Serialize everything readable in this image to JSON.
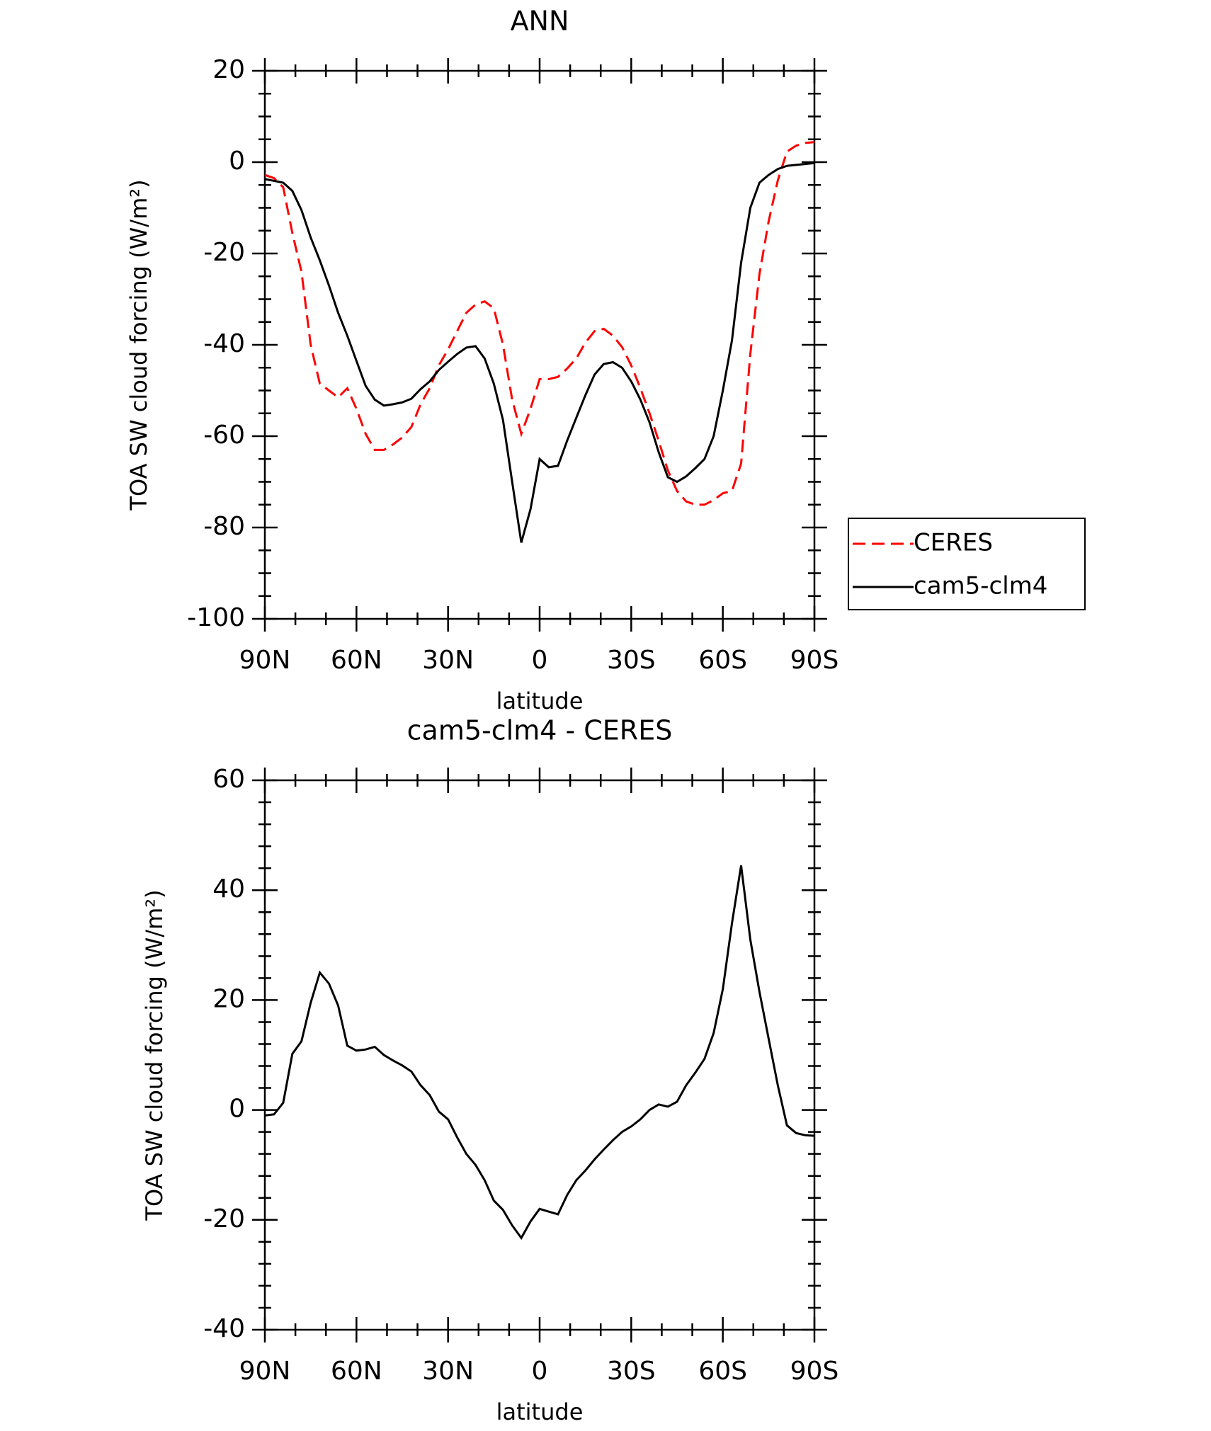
{
  "chart_data": [
    {
      "type": "line",
      "title": "ANN",
      "xlabel": "latitude",
      "ylabel": "TOA SW cloud forcing (W/m²)",
      "x": [
        90,
        87,
        84,
        81,
        78,
        75,
        72,
        69,
        66,
        63,
        60,
        57,
        54,
        51,
        48,
        45,
        42,
        39,
        36,
        33,
        30,
        27,
        24,
        21,
        18,
        15,
        12,
        9,
        6,
        3,
        0,
        -3,
        -6,
        -9,
        -12,
        -15,
        -18,
        -21,
        -24,
        -27,
        -30,
        -33,
        -36,
        -39,
        -42,
        -45,
        -48,
        -51,
        -54,
        -57,
        -60,
        -63,
        -66,
        -69,
        -72,
        -75,
        -78,
        -81,
        -84,
        -87,
        -90
      ],
      "xlim": [
        90,
        -90
      ],
      "xticks": [
        {
          "value": 90,
          "label": "90N"
        },
        {
          "value": 60,
          "label": "60N"
        },
        {
          "value": 30,
          "label": "30N"
        },
        0,
        {
          "value": -30,
          "label": "30S"
        },
        {
          "value": -60,
          "label": "60S"
        },
        {
          "value": -90,
          "label": "90S"
        }
      ],
      "ylim": [
        -100,
        20
      ],
      "yticks": [
        -100,
        -80,
        -60,
        -40,
        -20,
        0,
        20
      ],
      "legend": "outside-right",
      "series": [
        {
          "name": "CERES",
          "color": "#ff0000",
          "dash": "dashed",
          "values": [
            -2.8,
            -3.5,
            -5.5,
            -15.5,
            -24,
            -40,
            -48.5,
            -50,
            -51.5,
            -49.5,
            -54,
            -59.5,
            -63,
            -63,
            -61.8,
            -60.3,
            -58,
            -53,
            -49.5,
            -44.5,
            -41,
            -37,
            -33,
            -31.2,
            -30.5,
            -32,
            -40,
            -52,
            -59.5,
            -54,
            -47.5,
            -47.5,
            -47,
            -45.2,
            -43,
            -39.5,
            -37,
            -36.5,
            -38,
            -40.5,
            -44.5,
            -49.5,
            -55,
            -61,
            -67.5,
            -72,
            -74.3,
            -75,
            -75,
            -74,
            -72.5,
            -72,
            -66,
            -42,
            -24.5,
            -13,
            -4,
            2.3,
            3.6,
            4.2,
            4.4
          ]
        },
        {
          "name": "cam5-clm4",
          "color": "#000000",
          "dash": "solid",
          "values": [
            -3.7,
            -4.1,
            -4.5,
            -6.3,
            -10.5,
            -16.5,
            -21.5,
            -27,
            -33,
            -38,
            -43.5,
            -49,
            -52,
            -53.3,
            -53,
            -52.6,
            -51.8,
            -49.7,
            -48,
            -45.5,
            -43.7,
            -42,
            -40.6,
            -40.3,
            -43,
            -48.5,
            -56.5,
            -70,
            -83.3,
            -76,
            -65,
            -66.8,
            -66.5,
            -61,
            -56,
            -51,
            -46.5,
            -44.2,
            -43.8,
            -45,
            -48,
            -52,
            -57,
            -63.5,
            -69,
            -70,
            -68.8,
            -67,
            -65,
            -60,
            -50,
            -39,
            -22,
            -10,
            -4.5,
            -2.8,
            -1.5,
            -0.8,
            -0.6,
            -0.4,
            -0.2
          ]
        }
      ]
    },
    {
      "type": "line",
      "title": "cam5-clm4 - CERES",
      "xlabel": "latitude",
      "ylabel": "TOA SW cloud forcing (W/m²)",
      "x": [
        90,
        87,
        84,
        81,
        78,
        75,
        72,
        69,
        66,
        63,
        60,
        57,
        54,
        51,
        48,
        45,
        42,
        39,
        36,
        33,
        30,
        27,
        24,
        21,
        18,
        15,
        12,
        9,
        6,
        3,
        0,
        -3,
        -6,
        -9,
        -12,
        -15,
        -18,
        -21,
        -24,
        -27,
        -30,
        -33,
        -36,
        -39,
        -42,
        -45,
        -48,
        -51,
        -54,
        -57,
        -60,
        -63,
        -66,
        -69,
        -72,
        -75,
        -78,
        -81,
        -84,
        -87,
        -90
      ],
      "xlim": [
        90,
        -90
      ],
      "xticks": [
        {
          "value": 90,
          "label": "90N"
        },
        {
          "value": 60,
          "label": "60N"
        },
        {
          "value": 30,
          "label": "30N"
        },
        0,
        {
          "value": -30,
          "label": "30S"
        },
        {
          "value": -60,
          "label": "60S"
        },
        {
          "value": -90,
          "label": "90S"
        }
      ],
      "ylim": [
        -40,
        60
      ],
      "yticks": [
        -40,
        -20,
        0,
        20,
        40,
        60
      ],
      "color": "#000000",
      "values": [
        -1,
        -0.8,
        1.3,
        10.2,
        12.5,
        19.5,
        25,
        23,
        19,
        11.7,
        10.8,
        11,
        11.5,
        10,
        9,
        8.1,
        7,
        4.5,
        2.7,
        -0.3,
        -1.7,
        -5,
        -8,
        -10,
        -12.8,
        -16.5,
        -18.2,
        -21,
        -23.3,
        -20.3,
        -18,
        -18.5,
        -19,
        -15.5,
        -12.8,
        -11,
        -9,
        -7.2,
        -5.5,
        -4,
        -3,
        -1.7,
        0,
        1,
        0.6,
        1.5,
        4.5,
        6.8,
        9.3,
        14,
        22,
        34,
        44.5,
        31,
        21.5,
        13,
        4.5,
        -2.8,
        -4.2,
        -4.6,
        -4.7
      ]
    }
  ]
}
